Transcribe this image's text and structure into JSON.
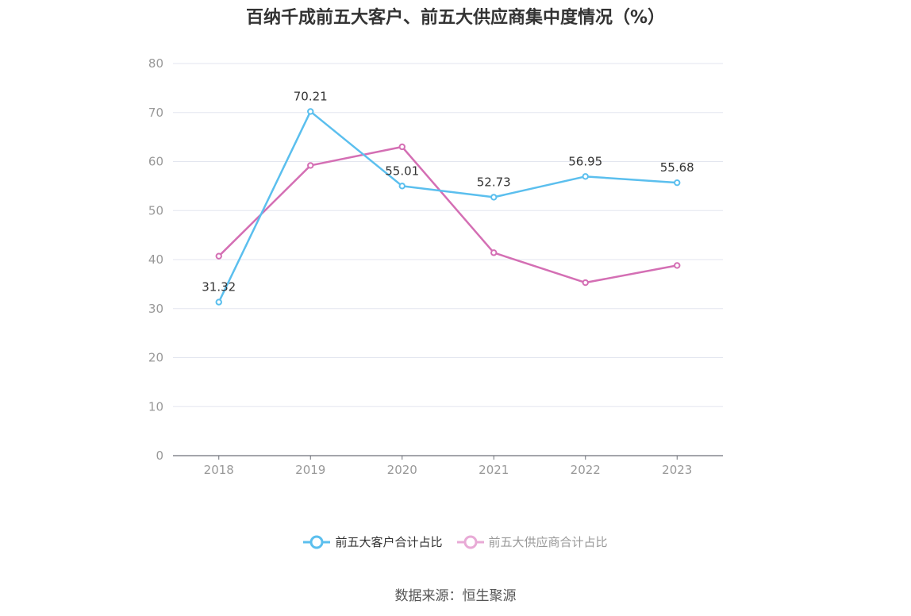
{
  "chart_data": {
    "type": "line",
    "title": "百纳千成前五大客户、前五大供应商集中度情况（%）",
    "categories": [
      "2018",
      "2019",
      "2020",
      "2021",
      "2022",
      "2023"
    ],
    "ylim": [
      0,
      80
    ],
    "yticks": [
      0,
      10,
      20,
      30,
      40,
      50,
      60,
      70,
      80
    ],
    "grid": true,
    "legend_position": "bottom",
    "series": [
      {
        "name": "前五大客户合计占比",
        "color": "#5bbfee",
        "values": [
          31.32,
          70.21,
          55.01,
          52.73,
          56.95,
          55.68
        ],
        "labels": [
          "31.32",
          "70.21",
          "55.01",
          "52.73",
          "56.95",
          "55.68"
        ]
      },
      {
        "name": "前五大供应商合计占比",
        "color": "#d46fb4",
        "legend_color": "#e8aad6",
        "values": [
          40.7,
          59.2,
          63.0,
          41.4,
          35.3,
          38.8
        ]
      }
    ],
    "source": "数据来源：恒生聚源"
  }
}
